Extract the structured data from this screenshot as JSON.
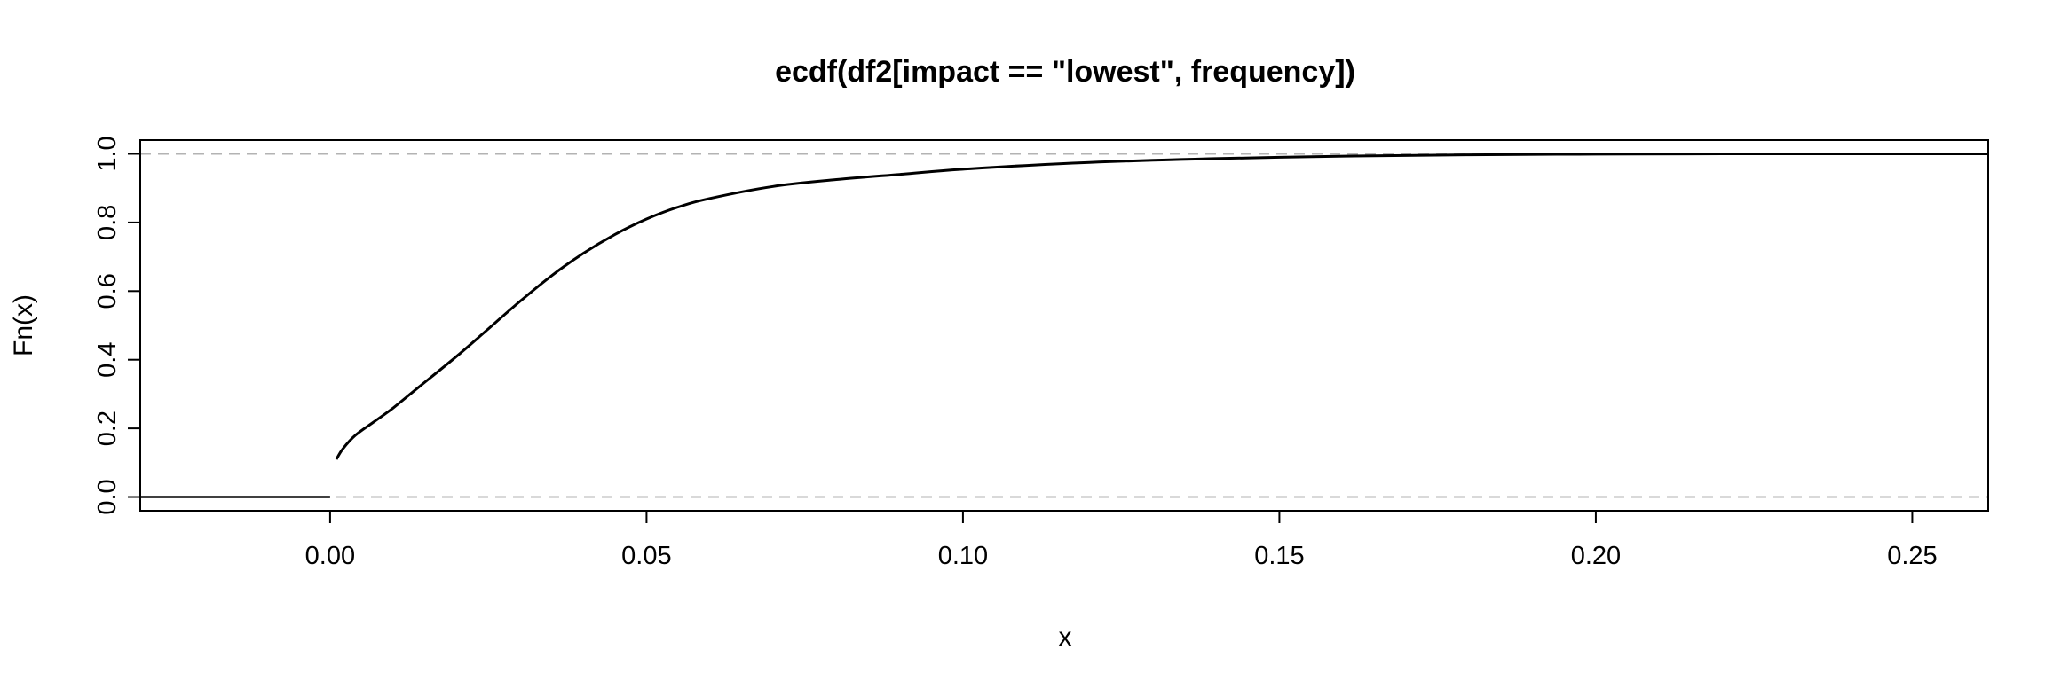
{
  "chart_data": {
    "type": "line",
    "title": "ecdf(df2[impact == \"lowest\", frequency])",
    "xlabel": "x",
    "ylabel": "Fn(x)",
    "xlim": [
      -0.03,
      0.262
    ],
    "ylim": [
      -0.04,
      1.04
    ],
    "x_ticks": [
      "0.00",
      "0.05",
      "0.10",
      "0.15",
      "0.20",
      "0.25"
    ],
    "y_ticks": [
      "0.0",
      "0.2",
      "0.4",
      "0.6",
      "0.8",
      "1.0"
    ],
    "reference_lines": [
      0,
      1
    ],
    "grid": false,
    "series": [
      {
        "x": [
          -0.03,
          0.0,
          0.001,
          0.002,
          0.004,
          0.007,
          0.01,
          0.014,
          0.02,
          0.025,
          0.03,
          0.035,
          0.04,
          0.045,
          0.05,
          0.055,
          0.06,
          0.07,
          0.08,
          0.09,
          0.1,
          0.12,
          0.15,
          0.18,
          0.2,
          0.22,
          0.25,
          0.262
        ],
        "y": [
          0.0,
          0.0,
          0.11,
          0.14,
          0.18,
          0.22,
          0.26,
          0.32,
          0.41,
          0.49,
          0.57,
          0.645,
          0.71,
          0.765,
          0.81,
          0.845,
          0.87,
          0.905,
          0.925,
          0.94,
          0.955,
          0.975,
          0.99,
          0.997,
          0.999,
          1.0,
          1.0,
          1.0
        ]
      }
    ],
    "colors": {
      "line": "#000000",
      "reference": "#b3b3b3"
    }
  }
}
